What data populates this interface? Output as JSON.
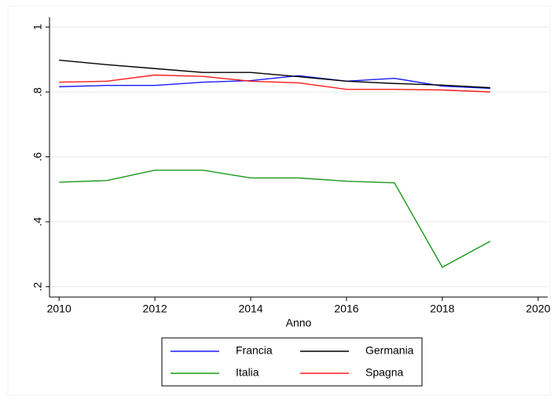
{
  "chart_data": {
    "type": "line",
    "xlabel": "Anno",
    "x": [
      2010,
      2011,
      2012,
      2013,
      2014,
      2015,
      2016,
      2017,
      2018,
      2019
    ],
    "series": [
      {
        "name": "Francia",
        "color": "#1a1aff",
        "values": [
          0.816,
          0.82,
          0.82,
          0.83,
          0.835,
          0.85,
          0.833,
          0.842,
          0.818,
          0.811
        ]
      },
      {
        "name": "Germania",
        "color": "#000000",
        "values": [
          0.898,
          0.884,
          0.872,
          0.86,
          0.86,
          0.847,
          0.833,
          0.826,
          0.821,
          0.813
        ]
      },
      {
        "name": "Italia",
        "color": "#1a9a1a",
        "values": [
          0.522,
          0.527,
          0.559,
          0.559,
          0.535,
          0.535,
          0.525,
          0.52,
          0.26,
          0.34
        ]
      },
      {
        "name": "Spagna",
        "color": "#ff1a1a",
        "values": [
          0.83,
          0.833,
          0.852,
          0.848,
          0.833,
          0.828,
          0.808,
          0.808,
          0.806,
          0.8
        ]
      }
    ],
    "xlim": [
      2009.8,
      2020.2
    ],
    "xticks": [
      2010,
      2012,
      2014,
      2016,
      2018,
      2020
    ],
    "ylim": [
      0.168,
      1.03
    ],
    "yticks": [
      {
        "value": 0.2,
        "label": ".2"
      },
      {
        "value": 0.4,
        "label": ".4"
      },
      {
        "value": 0.6,
        "label": ".6"
      },
      {
        "value": 0.8,
        "label": ".8"
      },
      1
    ],
    "grid": true,
    "legend": "bottom"
  }
}
